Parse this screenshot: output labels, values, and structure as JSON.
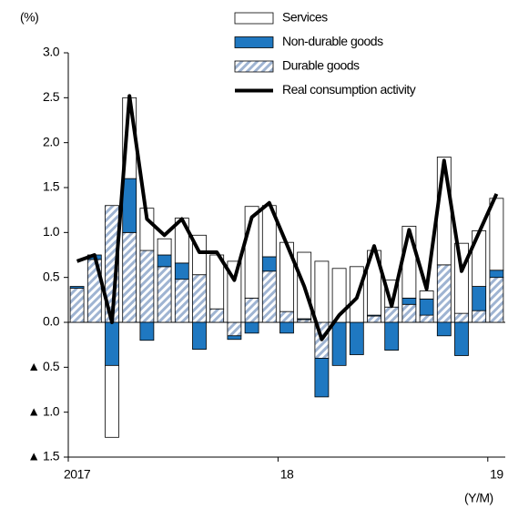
{
  "chart_data": {
    "type": "bar",
    "stacked": true,
    "y_unit_label": "(%)",
    "x_unit_label": "(Y/M)",
    "categories": [
      "2017",
      null,
      null,
      null,
      null,
      null,
      null,
      null,
      null,
      null,
      null,
      null,
      "18",
      null,
      null,
      null,
      null,
      null,
      null,
      null,
      null,
      null,
      null,
      null,
      "19"
    ],
    "series": [
      {
        "name": "Services",
        "type": "bar",
        "color": "#ffffff",
        "values": [
          0,
          0,
          -0.8,
          0.9,
          0.47,
          0.18,
          0.5,
          0.44,
          0.6,
          0.68,
          1.02,
          0.57,
          0.77,
          0.74,
          0.68,
          0.6,
          0.62,
          0.72,
          0.3,
          0.8,
          0.09,
          1.2,
          0.78,
          0.62,
          0.8
        ]
      },
      {
        "name": "Non-durable goods",
        "type": "bar",
        "color": "#1f78c1",
        "values": [
          0.02,
          0.05,
          -0.48,
          0.6,
          -0.2,
          0.13,
          0.18,
          -0.3,
          0,
          -0.04,
          -0.12,
          0.16,
          -0.12,
          0.01,
          -0.43,
          -0.48,
          -0.36,
          0.01,
          -0.31,
          0.07,
          0.18,
          -0.15,
          -0.37,
          0.27,
          0.08
        ]
      },
      {
        "name": "Durable goods",
        "type": "bar",
        "color": "#9fb4d2",
        "hatch": true,
        "values": [
          0.38,
          0.7,
          1.3,
          1.0,
          0.8,
          0.62,
          0.48,
          0.53,
          0.15,
          -0.15,
          0.27,
          0.57,
          0.12,
          0.03,
          -0.4,
          0,
          0,
          0.07,
          0.17,
          0.2,
          0.08,
          0.64,
          0.1,
          0.13,
          0.5
        ]
      },
      {
        "name": "Real consumption activity",
        "type": "line",
        "color": "#000000",
        "values": [
          0.68,
          0.75,
          0.0,
          2.52,
          1.15,
          0.97,
          1.15,
          0.78,
          0.78,
          0.47,
          1.17,
          1.33,
          0.87,
          0.4,
          -0.19,
          0.08,
          0.27,
          0.85,
          0.18,
          1.03,
          0.37,
          1.8,
          0.57,
          1.0,
          1.43
        ]
      }
    ],
    "ylim": [
      -1.5,
      3
    ],
    "yticks": [
      {
        "value": -1.5,
        "label": "▲ 1.5"
      },
      {
        "value": -1,
        "label": "▲ 1.0"
      },
      {
        "value": -0.5,
        "label": "▲ 0.5"
      },
      {
        "value": 0,
        "label": "0.0"
      },
      {
        "value": 0.5,
        "label": "0.5"
      },
      {
        "value": 1,
        "label": "1.0"
      },
      {
        "value": 1.5,
        "label": "1.5"
      },
      {
        "value": 2,
        "label": "2.0"
      },
      {
        "value": 2.5,
        "label": "2.5"
      },
      {
        "value": 3,
        "label": "3.0"
      }
    ],
    "legend": "top-right"
  }
}
